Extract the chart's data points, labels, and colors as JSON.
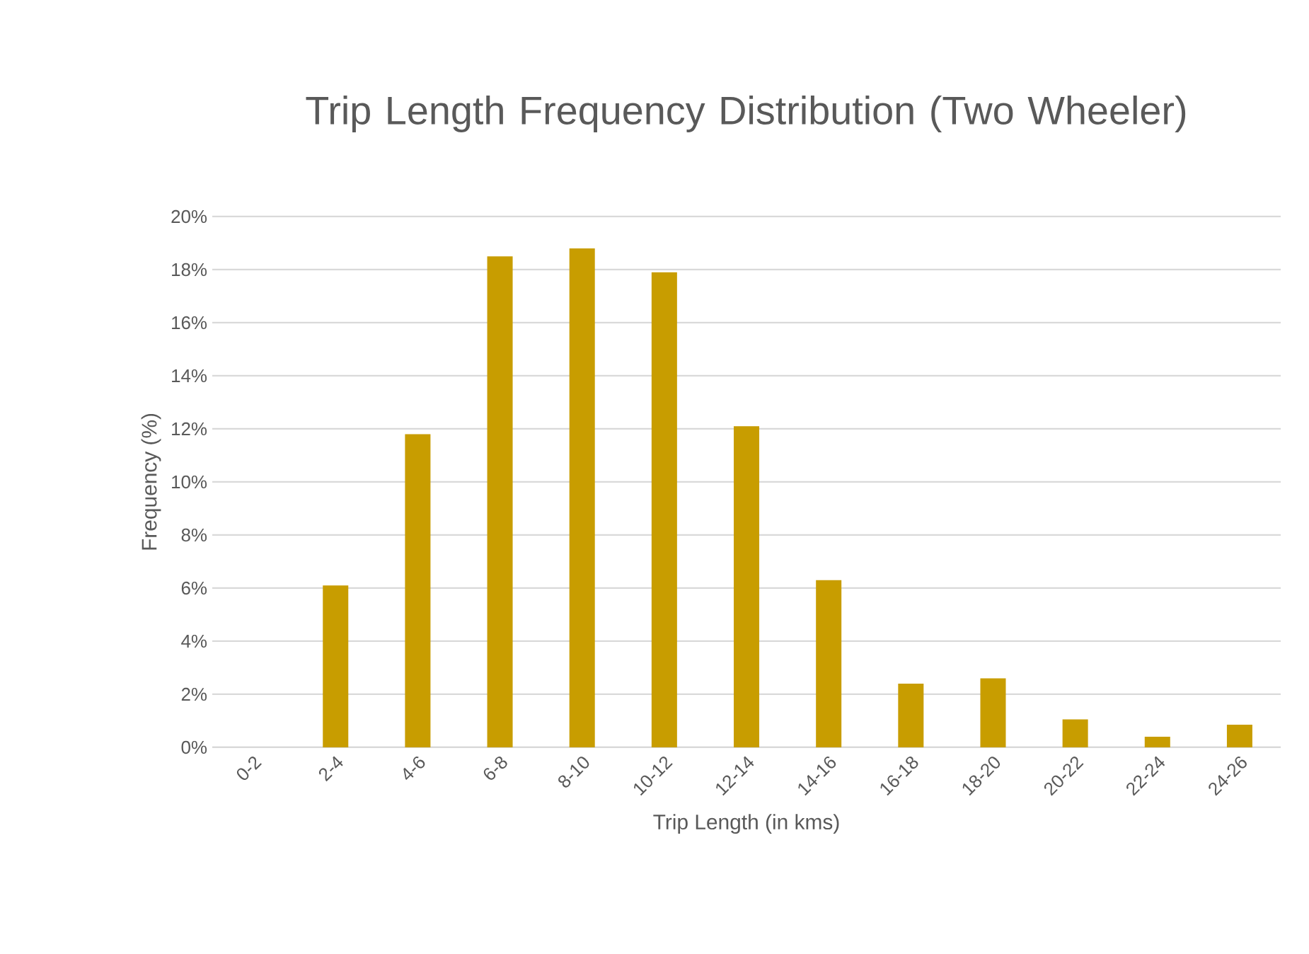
{
  "chart_data": {
    "type": "bar",
    "title": "Trip Length Frequency Distribution (Two Wheeler)",
    "xlabel": "Trip Length (in kms)",
    "ylabel": "Frequency (%)",
    "categories": [
      "0-2",
      "2-4",
      "4-6",
      "6-8",
      "8-10",
      "10-12",
      "12-14",
      "14-16",
      "16-18",
      "18-20",
      "20-22",
      "22-24",
      "24-26"
    ],
    "values": [
      0,
      6.1,
      11.8,
      18.5,
      18.8,
      17.9,
      12.1,
      6.3,
      2.4,
      2.6,
      1.05,
      0.4,
      0.85
    ],
    "color": "#c89d00",
    "ylim": [
      0,
      20
    ],
    "yticks": [
      {
        "value": 0,
        "label": "0%"
      },
      {
        "value": 2,
        "label": "2%"
      },
      {
        "value": 4,
        "label": "4%"
      },
      {
        "value": 6,
        "label": "6%"
      },
      {
        "value": 8,
        "label": "8%"
      },
      {
        "value": 10,
        "label": "10%"
      },
      {
        "value": 12,
        "label": "12%"
      },
      {
        "value": 14,
        "label": "14%"
      },
      {
        "value": 16,
        "label": "16%"
      },
      {
        "value": 18,
        "label": "18%"
      },
      {
        "value": 20,
        "label": "20%"
      }
    ],
    "grid": "y"
  }
}
